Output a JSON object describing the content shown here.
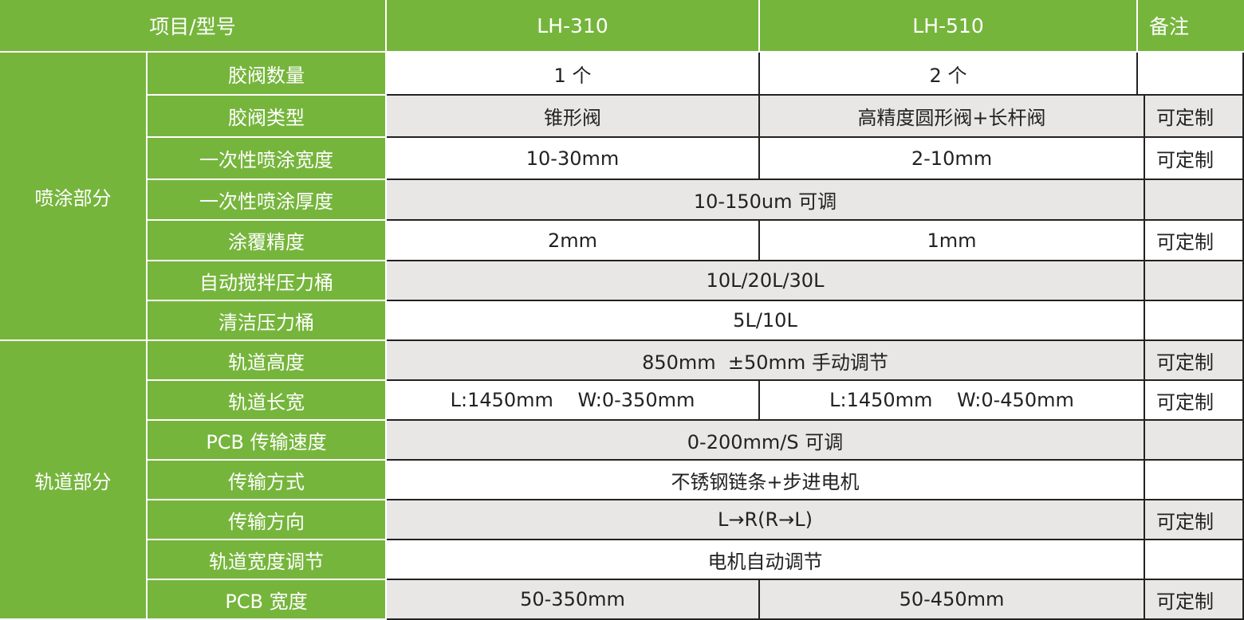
{
  "header": {
    "item_label": "项目/型号",
    "model1": "LH-310",
    "model2": "LH-510",
    "remark": "备注"
  },
  "colors": {
    "green": "#76b53c",
    "gray_row": "#e8e7e6"
  },
  "groups": [
    {
      "label": "喷涂部分",
      "rows": [
        {
          "item": "胶阀数量",
          "values": [
            "1 个",
            "2 个"
          ],
          "remark": ""
        },
        {
          "item": "胶阀类型",
          "values": [
            "锥形阀",
            "高精度圆形阀+长杆阀"
          ],
          "remark": "可定制"
        },
        {
          "item": "一次性喷涂宽度",
          "values": [
            "10-30mm",
            "2-10mm"
          ],
          "remark": "可定制"
        },
        {
          "item": "一次性喷涂厚度",
          "values": [
            "10-150um 可调"
          ],
          "remark": ""
        },
        {
          "item": "涂覆精度",
          "values": [
            "2mm",
            "1mm"
          ],
          "remark": "可定制"
        },
        {
          "item": "自动搅拌压力桶",
          "values": [
            "10L/20L/30L"
          ],
          "remark": ""
        },
        {
          "item": "清洁压力桶",
          "values": [
            "5L/10L"
          ],
          "remark": ""
        }
      ]
    },
    {
      "label": "轨道部分",
      "rows": [
        {
          "item": "轨道高度",
          "values": [
            "850mm  ±50mm 手动调节"
          ],
          "remark": "可定制"
        },
        {
          "item": "轨道长宽",
          "values": [
            "L:1450mm    W:0-350mm",
            "L:1450mm    W:0-450mm"
          ],
          "remark": "可定制"
        },
        {
          "item": "PCB 传输速度",
          "values": [
            "0-200mm/S 可调"
          ],
          "remark": ""
        },
        {
          "item": "传输方式",
          "values": [
            "不锈钢链条+步进电机"
          ],
          "remark": ""
        },
        {
          "item": "传输方向",
          "values": [
            "L→R(R→L)"
          ],
          "remark": "可定制"
        },
        {
          "item": "轨道宽度调节",
          "values": [
            "电机自动调节"
          ],
          "remark": ""
        },
        {
          "item": "PCB 宽度",
          "values": [
            "50-350mm",
            "50-450mm"
          ],
          "remark": "可定制"
        }
      ]
    }
  ]
}
